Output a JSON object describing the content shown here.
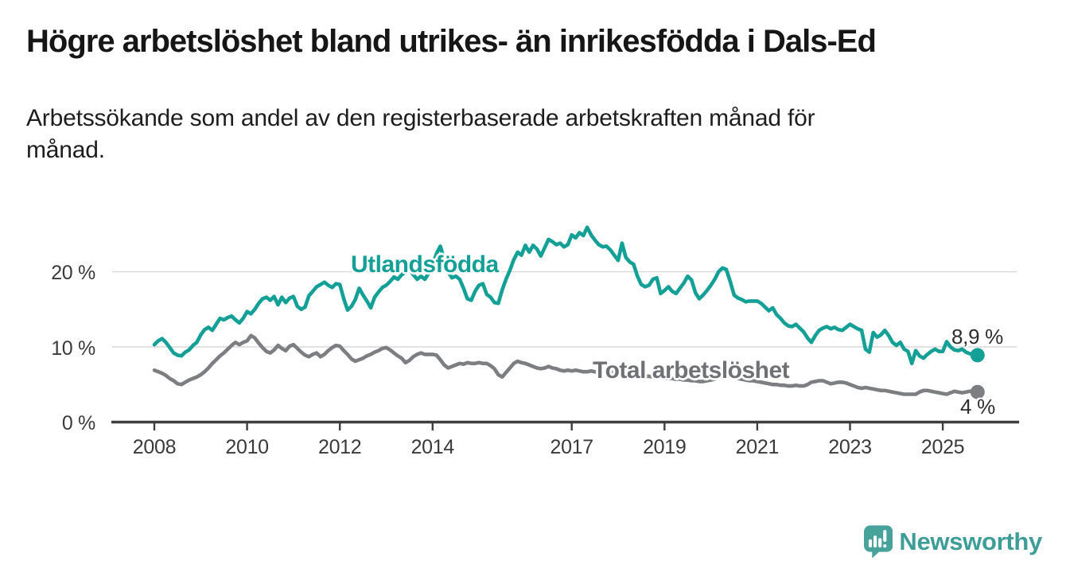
{
  "title": "Högre arbetslöshet bland utrikes- än inrikesfödda i Dals-Ed",
  "subtitle_line1": "Arbetssökande som andel av den registerbaserade arbetskraften månad för",
  "subtitle_line2": "månad.",
  "chart_data": {
    "type": "line",
    "x_start": "2008-01",
    "x_end": "2025-10",
    "x_frequency": "monthly",
    "x_tick_years": [
      2008,
      2010,
      2012,
      2014,
      2017,
      2019,
      2021,
      2023,
      2025
    ],
    "x_tick_labels": [
      "2008",
      "2010",
      "2012",
      "2014",
      "2017",
      "2019",
      "2021",
      "2023",
      "2025"
    ],
    "y_tick_labels": [
      "20 %",
      "10 %",
      "0 %"
    ],
    "y_gridlines_pct": [
      20,
      10
    ],
    "ylim": [
      0,
      27
    ],
    "grid": "horizontal",
    "colors": {
      "axis": "#3e3e3e",
      "gridline": "#d9d9d9",
      "tick_text": "#3a3a3a"
    },
    "series": [
      {
        "name": "Utlandsfödda",
        "color": "#14A096",
        "label_color": "#14A096",
        "end_label": "8,9 %",
        "end_value": 8.9,
        "values": [
          10.3,
          10.8,
          11.1,
          10.6,
          9.9,
          9.2,
          8.9,
          8.8,
          9.3,
          9.6,
          10.2,
          10.6,
          11.6,
          12.3,
          12.6,
          12.2,
          13.0,
          13.8,
          13.6,
          13.9,
          14.1,
          13.6,
          13.2,
          13.8,
          14.7,
          14.4,
          15.0,
          15.8,
          16.4,
          16.6,
          16.2,
          16.7,
          15.6,
          16.6,
          15.9,
          16.5,
          16.7,
          15.4,
          15.0,
          15.3,
          16.8,
          17.4,
          18.0,
          18.3,
          18.6,
          18.2,
          17.9,
          18.4,
          18.3,
          16.4,
          14.9,
          15.4,
          16.3,
          17.8,
          16.9,
          16.1,
          15.2,
          16.6,
          17.3,
          17.9,
          18.2,
          18.7,
          19.3,
          19.0,
          19.6,
          19.9,
          20.3,
          19.6,
          19.0,
          19.4,
          19.0,
          19.8,
          20.8,
          22.4,
          23.4,
          21.6,
          20.0,
          19.2,
          19.4,
          19.0,
          17.8,
          16.4,
          16.2,
          17.4,
          18.2,
          18.4,
          17.0,
          16.6,
          15.9,
          15.8,
          17.6,
          19.0,
          20.2,
          21.6,
          22.6,
          22.2,
          23.5,
          22.6,
          23.5,
          23.0,
          22.1,
          23.2,
          24.3,
          24.0,
          23.6,
          23.8,
          23.3,
          23.6,
          24.9,
          24.5,
          25.2,
          24.8,
          25.9,
          24.9,
          24.2,
          23.6,
          23.3,
          23.4,
          22.9,
          22.2,
          21.5,
          23.8,
          21.9,
          21.3,
          21.0,
          19.4,
          18.3,
          18.0,
          18.2,
          19.0,
          19.2,
          17.1,
          17.5,
          18.0,
          17.4,
          17.1,
          17.8,
          18.5,
          19.4,
          18.9,
          17.2,
          16.4,
          16.9,
          17.5,
          18.2,
          19.0,
          20.0,
          20.5,
          20.3,
          18.7,
          16.9,
          16.5,
          16.3,
          16.0,
          16.1,
          16.1,
          16.1,
          15.8,
          15.3,
          14.8,
          15.2,
          14.3,
          13.8,
          13.2,
          12.8,
          12.7,
          13.0,
          12.5,
          12.0,
          11.2,
          10.6,
          11.5,
          12.2,
          12.5,
          12.7,
          12.4,
          12.6,
          12.3,
          12.2,
          12.6,
          13.0,
          12.7,
          12.4,
          12.2,
          9.7,
          9.3,
          11.9,
          11.3,
          11.6,
          12.2,
          11.5,
          10.6,
          10.2,
          10.6,
          9.7,
          9.4,
          7.8,
          9.5,
          8.8,
          8.5,
          9.0,
          9.4,
          9.7,
          9.4,
          9.4,
          10.7,
          10.0,
          9.6,
          9.5,
          9.7,
          9.3,
          9.1,
          9.0,
          8.9
        ]
      },
      {
        "name": "Total arbetslöshet",
        "color": "#7d7e81",
        "label_color": "#6f7174",
        "end_label": "4 %",
        "end_value": 4.0,
        "values": [
          6.9,
          6.7,
          6.5,
          6.2,
          5.8,
          5.5,
          5.1,
          5.0,
          5.3,
          5.6,
          5.8,
          6.0,
          6.3,
          6.7,
          7.2,
          7.8,
          8.3,
          8.8,
          9.2,
          9.7,
          10.2,
          10.6,
          10.3,
          10.6,
          10.8,
          11.5,
          11.2,
          10.5,
          9.9,
          9.4,
          9.2,
          9.6,
          10.2,
          9.8,
          9.5,
          10.1,
          10.3,
          9.8,
          9.3,
          8.9,
          8.7,
          9.0,
          9.2,
          8.7,
          9.0,
          9.5,
          9.9,
          10.2,
          10.1,
          9.5,
          9.0,
          8.4,
          8.1,
          8.3,
          8.5,
          8.8,
          9.0,
          9.3,
          9.5,
          9.8,
          9.9,
          9.6,
          9.2,
          8.8,
          8.5,
          7.9,
          8.2,
          8.7,
          9.0,
          9.2,
          9.0,
          9.0,
          9.0,
          8.9,
          8.3,
          7.6,
          7.2,
          7.4,
          7.6,
          7.8,
          7.7,
          7.9,
          7.8,
          7.8,
          7.9,
          7.8,
          7.8,
          7.5,
          7.1,
          6.3,
          6.0,
          6.6,
          7.2,
          7.8,
          8.1,
          7.9,
          7.8,
          7.6,
          7.4,
          7.2,
          7.1,
          7.2,
          7.4,
          7.2,
          7.1,
          6.9,
          6.8,
          6.9,
          6.8,
          6.9,
          6.8,
          6.7,
          6.7,
          6.8,
          6.7,
          6.6,
          6.7,
          6.7,
          6.6,
          6.6,
          6.5,
          6.5,
          6.4,
          6.4,
          6.3,
          6.2,
          6.2,
          6.1,
          6.1,
          6.0,
          6.0,
          5.9,
          5.9,
          5.8,
          5.8,
          5.7,
          5.7,
          5.6,
          5.6,
          5.5,
          5.5,
          5.4,
          5.4,
          5.5,
          5.6,
          5.7,
          5.9,
          6.1,
          6.2,
          6.1,
          6.0,
          5.8,
          5.7,
          5.6,
          5.5,
          5.5,
          5.4,
          5.3,
          5.2,
          5.1,
          5.0,
          5.0,
          4.9,
          4.9,
          4.8,
          4.8,
          4.9,
          4.8,
          4.8,
          5.0,
          5.3,
          5.4,
          5.5,
          5.5,
          5.3,
          5.1,
          5.2,
          5.3,
          5.3,
          5.2,
          5.0,
          4.8,
          4.6,
          4.5,
          4.6,
          4.5,
          4.4,
          4.3,
          4.2,
          4.2,
          4.1,
          4.0,
          3.9,
          3.8,
          3.7,
          3.7,
          3.7,
          3.7,
          4.0,
          4.2,
          4.2,
          4.1,
          4.0,
          3.9,
          3.8,
          3.7,
          3.9,
          4.1,
          4.0,
          3.9,
          4.0,
          4.1,
          4.1,
          4.0
        ]
      }
    ]
  },
  "branding": {
    "logo_text": "Newsworthy",
    "logo_text_color": "#3F9D97",
    "logo_bubble_color": "#47A29B",
    "logo_icon": "speech-bubble-bar-chart-exclamation-icon"
  }
}
